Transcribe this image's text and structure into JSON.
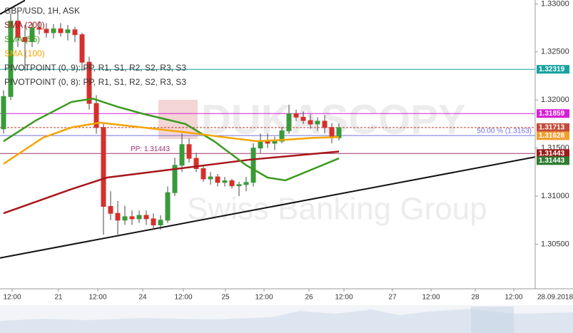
{
  "chart_data": {
    "type": "candlestick",
    "title": "GBP/USD, 1H, ASK",
    "indicators": [
      "PIVOTPOINT (0, 9): PP, R1, S1, R2, S2, R3, S3",
      "PIVOTPOINT (0, 8): PP, R1, S1, R2, S2, R3, S3"
    ],
    "up_color": "#3a9a3a",
    "down_color": "#d4302c",
    "x": [
      0,
      1,
      2,
      3,
      4,
      5,
      6,
      7,
      8,
      9,
      10,
      11,
      12,
      13,
      14,
      15,
      16,
      17,
      18,
      19,
      20,
      21,
      22,
      23,
      24,
      25,
      26,
      27,
      28,
      29,
      30,
      31,
      32,
      33,
      34,
      35,
      36,
      37,
      38,
      39,
      40,
      41,
      42,
      43,
      44,
      45,
      46,
      47
    ],
    "open": [
      1.317,
      1.32036,
      1.32821,
      1.3265,
      1.32607,
      1.3275,
      1.32736,
      1.327,
      1.3274,
      1.327,
      1.3273,
      1.32679,
      1.32393,
      1.31964,
      1.31714,
      1.30893,
      1.30821,
      1.3075,
      1.30786,
      1.30764,
      1.308,
      1.30764,
      1.307,
      1.3075,
      1.31036,
      1.31321,
      1.31536,
      1.31393,
      1.31286,
      1.31179,
      1.312,
      1.31143,
      1.3116,
      1.31107,
      1.3112,
      1.31143,
      1.315,
      1.31571,
      1.3155,
      1.31571,
      1.31679,
      1.31857,
      1.31821,
      1.31786,
      1.3175,
      1.3178,
      1.31714,
      1.31607
    ],
    "high": [
      1.321,
      1.329,
      1.3295,
      1.3278,
      1.328,
      1.3282,
      1.328,
      1.3279,
      1.328,
      1.3278,
      1.3276,
      1.327,
      1.3245,
      1.3205,
      1.3175,
      1.3105,
      1.3095,
      1.309,
      1.3085,
      1.3085,
      1.3085,
      1.3082,
      1.308,
      1.311,
      1.314,
      1.3165,
      1.316,
      1.3145,
      1.3132,
      1.3125,
      1.3123,
      1.312,
      1.3118,
      1.3115,
      1.312,
      1.3155,
      1.3165,
      1.3165,
      1.3162,
      1.3172,
      1.3195,
      1.319,
      1.3188,
      1.3185,
      1.3182,
      1.3184,
      1.3176,
      1.3176
    ],
    "low": [
      1.3165,
      1.32,
      1.3255,
      1.323,
      1.3255,
      1.3268,
      1.3265,
      1.3264,
      1.3266,
      1.3262,
      1.326,
      1.323,
      1.319,
      1.3165,
      1.306,
      1.3075,
      1.306,
      1.307,
      1.307,
      1.3072,
      1.307,
      1.3065,
      1.3065,
      1.3072,
      1.31,
      1.3125,
      1.3135,
      1.3125,
      1.3115,
      1.3112,
      1.311,
      1.311,
      1.3108,
      1.31,
      1.3105,
      1.311,
      1.3145,
      1.315,
      1.3148,
      1.3155,
      1.3165,
      1.3178,
      1.3175,
      1.317,
      1.3168,
      1.3165,
      1.3155,
      1.3158
    ],
    "close": [
      1.32036,
      1.32821,
      1.3265,
      1.32607,
      1.3275,
      1.32736,
      1.327,
      1.3274,
      1.327,
      1.3273,
      1.32679,
      1.32393,
      1.31964,
      1.31714,
      1.30893,
      1.30821,
      1.3075,
      1.30786,
      1.30764,
      1.308,
      1.30764,
      1.307,
      1.3075,
      1.31036,
      1.31321,
      1.31536,
      1.31393,
      1.31286,
      1.31179,
      1.312,
      1.31143,
      1.3116,
      1.31107,
      1.3112,
      1.31143,
      1.315,
      1.31571,
      1.3155,
      1.31571,
      1.31679,
      1.31857,
      1.31821,
      1.31786,
      1.3175,
      1.3178,
      1.31714,
      1.31607,
      1.31713
    ],
    "overlays": [
      {
        "name": "SMA (200)",
        "color": "#a8161b",
        "x": [
          0,
          9.5,
          14.5,
          24.5,
          34.5,
          47
        ],
        "values": [
          1.30822,
          1.31072,
          1.31193,
          1.31286,
          1.31379,
          1.31464
        ]
      },
      {
        "name": "SMA (55)",
        "color": "#3b9a1e",
        "x": [
          0,
          4.5,
          9.5,
          12.5,
          16,
          19.5,
          25.5,
          29.5,
          34,
          37,
          39.5,
          43.5,
          47
        ],
        "values": [
          1.31571,
          1.31786,
          1.31979,
          1.32014,
          1.31929,
          1.31857,
          1.3175,
          1.31571,
          1.31321,
          1.31193,
          1.31164,
          1.31286,
          1.31393
        ]
      },
      {
        "name": "SMA (100)",
        "color": "#f5a400",
        "x": [
          0,
          5.5,
          9.5,
          13.5,
          19.5,
          25.5,
          31.5,
          35.5,
          39.5,
          43.5,
          47
        ],
        "values": [
          1.31336,
          1.31607,
          1.31714,
          1.31764,
          1.31714,
          1.31664,
          1.31607,
          1.31571,
          1.31586,
          1.31607,
          1.31614
        ]
      }
    ],
    "trendlines": [
      {
        "color": "#111111",
        "x": [
          -0.5,
          74.5
        ],
        "values": [
          1.30357,
          1.31407
        ]
      },
      {
        "color": "#111111",
        "x": [
          -0.5,
          3
        ],
        "values": [
          1.32893,
          1.33036
        ]
      }
    ],
    "levels": [
      {
        "value": 1.32319,
        "color": "#17a2a2"
      },
      {
        "value": 1.31859,
        "color": "#d61fd6"
      },
      {
        "value": 1.31713,
        "color": "#c0392b",
        "dashed": true
      },
      {
        "value": 1.3163,
        "color": "#7070dd",
        "label": "50.00 % (1.3163)"
      },
      {
        "value": 1.31443,
        "color": "#a0306f",
        "label": "PP: 1.31443"
      }
    ],
    "price_tags": [
      {
        "value": 1.32319,
        "color": "#17a2a2"
      },
      {
        "value": 1.31859,
        "color": "#d61fd6"
      },
      {
        "value": 1.31713,
        "color": "#c44a3a"
      },
      {
        "value": 1.31628,
        "color": "#f0a030"
      },
      {
        "value": 1.31443,
        "color": "#9b1a1a"
      },
      {
        "value": 1.31443,
        "color": "#2e7d32"
      }
    ],
    "ylim": [
      1.30036,
      1.3304
    ],
    "yticks": [
      {
        "value": 1.33,
        "label": "1.33000"
      },
      {
        "value": 1.325,
        "label": "1.32500"
      },
      {
        "value": 1.32,
        "label": "1.32000"
      },
      {
        "value": 1.315,
        "label": "1.31500"
      },
      {
        "value": 1.31,
        "label": "1.31000"
      },
      {
        "value": 1.305,
        "label": "1.30500"
      }
    ],
    "xlim": [
      -0.5,
      74.5
    ],
    "xticks": [
      {
        "value": 1.2,
        "label": "12:00"
      },
      {
        "value": 7.7,
        "label": "21"
      },
      {
        "value": 13.2,
        "label": "12:00"
      },
      {
        "value": 19.5,
        "label": "24"
      },
      {
        "value": 25.2,
        "label": "12:00"
      },
      {
        "value": 31.1,
        "label": "25"
      },
      {
        "value": 36.5,
        "label": "12:00"
      },
      {
        "value": 42.8,
        "label": "26"
      },
      {
        "value": 47.7,
        "label": "12:00"
      },
      {
        "value": 54.5,
        "label": "27"
      },
      {
        "value": 59.9,
        "label": "12:00"
      },
      {
        "value": 66.1,
        "label": "28"
      },
      {
        "value": 71.5,
        "label": "12:00"
      }
    ],
    "date_label": "28.09.2018",
    "watermark": [
      "DUKASCOPY",
      "Swiss Banking Group"
    ],
    "grid": false
  }
}
